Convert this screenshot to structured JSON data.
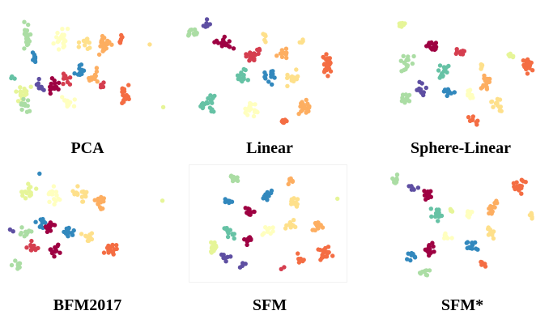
{
  "figure": {
    "panels": [
      {
        "caption": "PCA"
      },
      {
        "caption": "Linear"
      },
      {
        "caption": "Sphere-Linear"
      },
      {
        "caption": "BFM2017"
      },
      {
        "caption": "SFM"
      },
      {
        "caption": "SFM*"
      }
    ]
  },
  "palette": [
    "#9e0142",
    "#d53e4f",
    "#f46d43",
    "#fdae61",
    "#fee08b",
    "#ffffbf",
    "#e6f598",
    "#abdda4",
    "#66c2a5",
    "#3288bd",
    "#5e4fa2"
  ]
}
